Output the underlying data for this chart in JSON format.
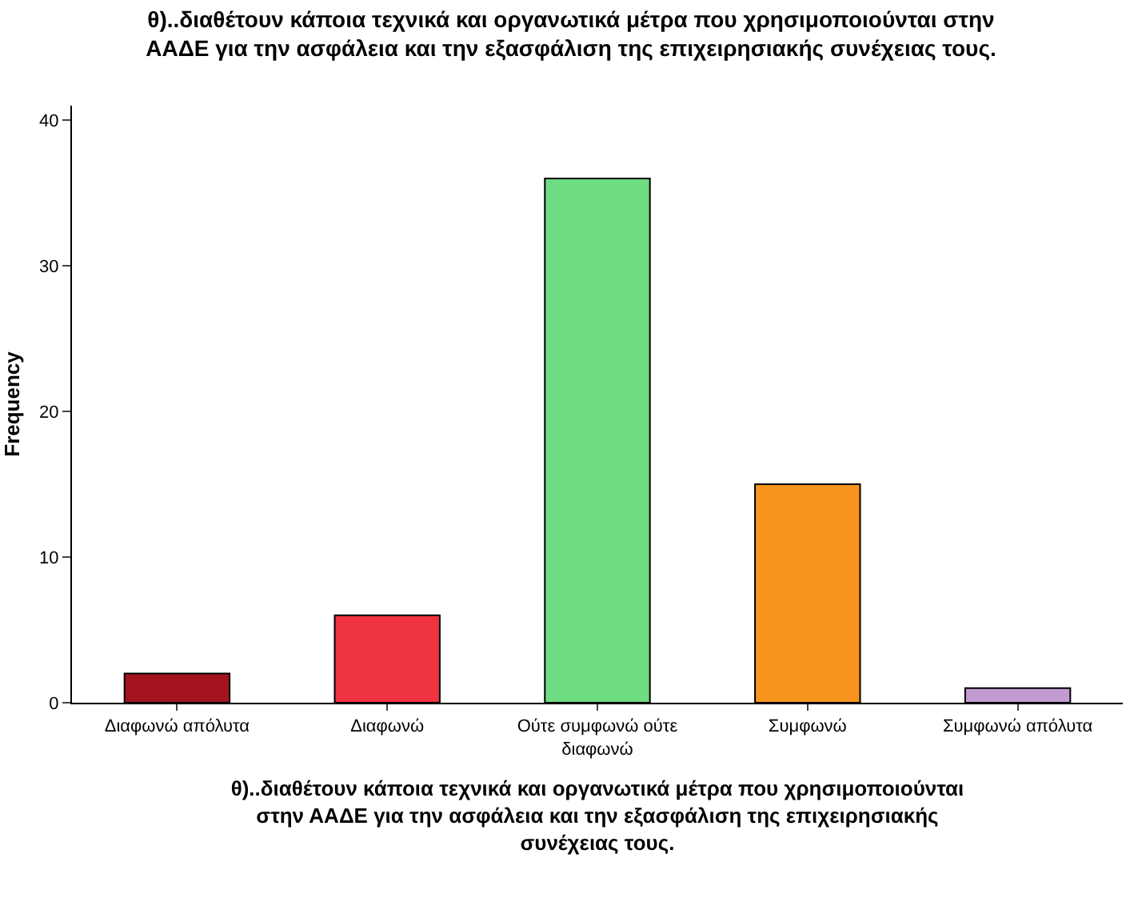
{
  "chart_data": {
    "type": "bar",
    "title": "θ)..διαθέτουν κάποια τεχνικά και οργανωτικά μέτρα που χρησιμοποιούνται στην ΑΑΔΕ για την ασφάλεια και την εξασφάλιση της επιχειρησιακής συνέχειας τους.",
    "xlabel": "θ)..διαθέτουν κάποια τεχνικά και οργανωτικά μέτρα που χρησιμοποιούνται στην ΑΑΔΕ για την ασφάλεια και την εξασφάλιση της επιχειρησιακής συνέχειας τους.",
    "ylabel": "Frequency",
    "categories": [
      "Διαφωνώ απόλυτα",
      "Διαφωνώ",
      "Ούτε συμφωνώ ούτε διαφωνώ",
      "Συμφωνώ",
      "Συμφωνώ απόλυτα"
    ],
    "values": [
      2,
      6,
      36,
      15,
      1
    ],
    "colors": [
      "#a3141f",
      "#ef3340",
      "#6fdc83",
      "#f7941d",
      "#c29bd1"
    ],
    "ylim": [
      0,
      41
    ],
    "yticks": [
      0,
      10,
      20,
      30,
      40
    ],
    "grid": false
  }
}
